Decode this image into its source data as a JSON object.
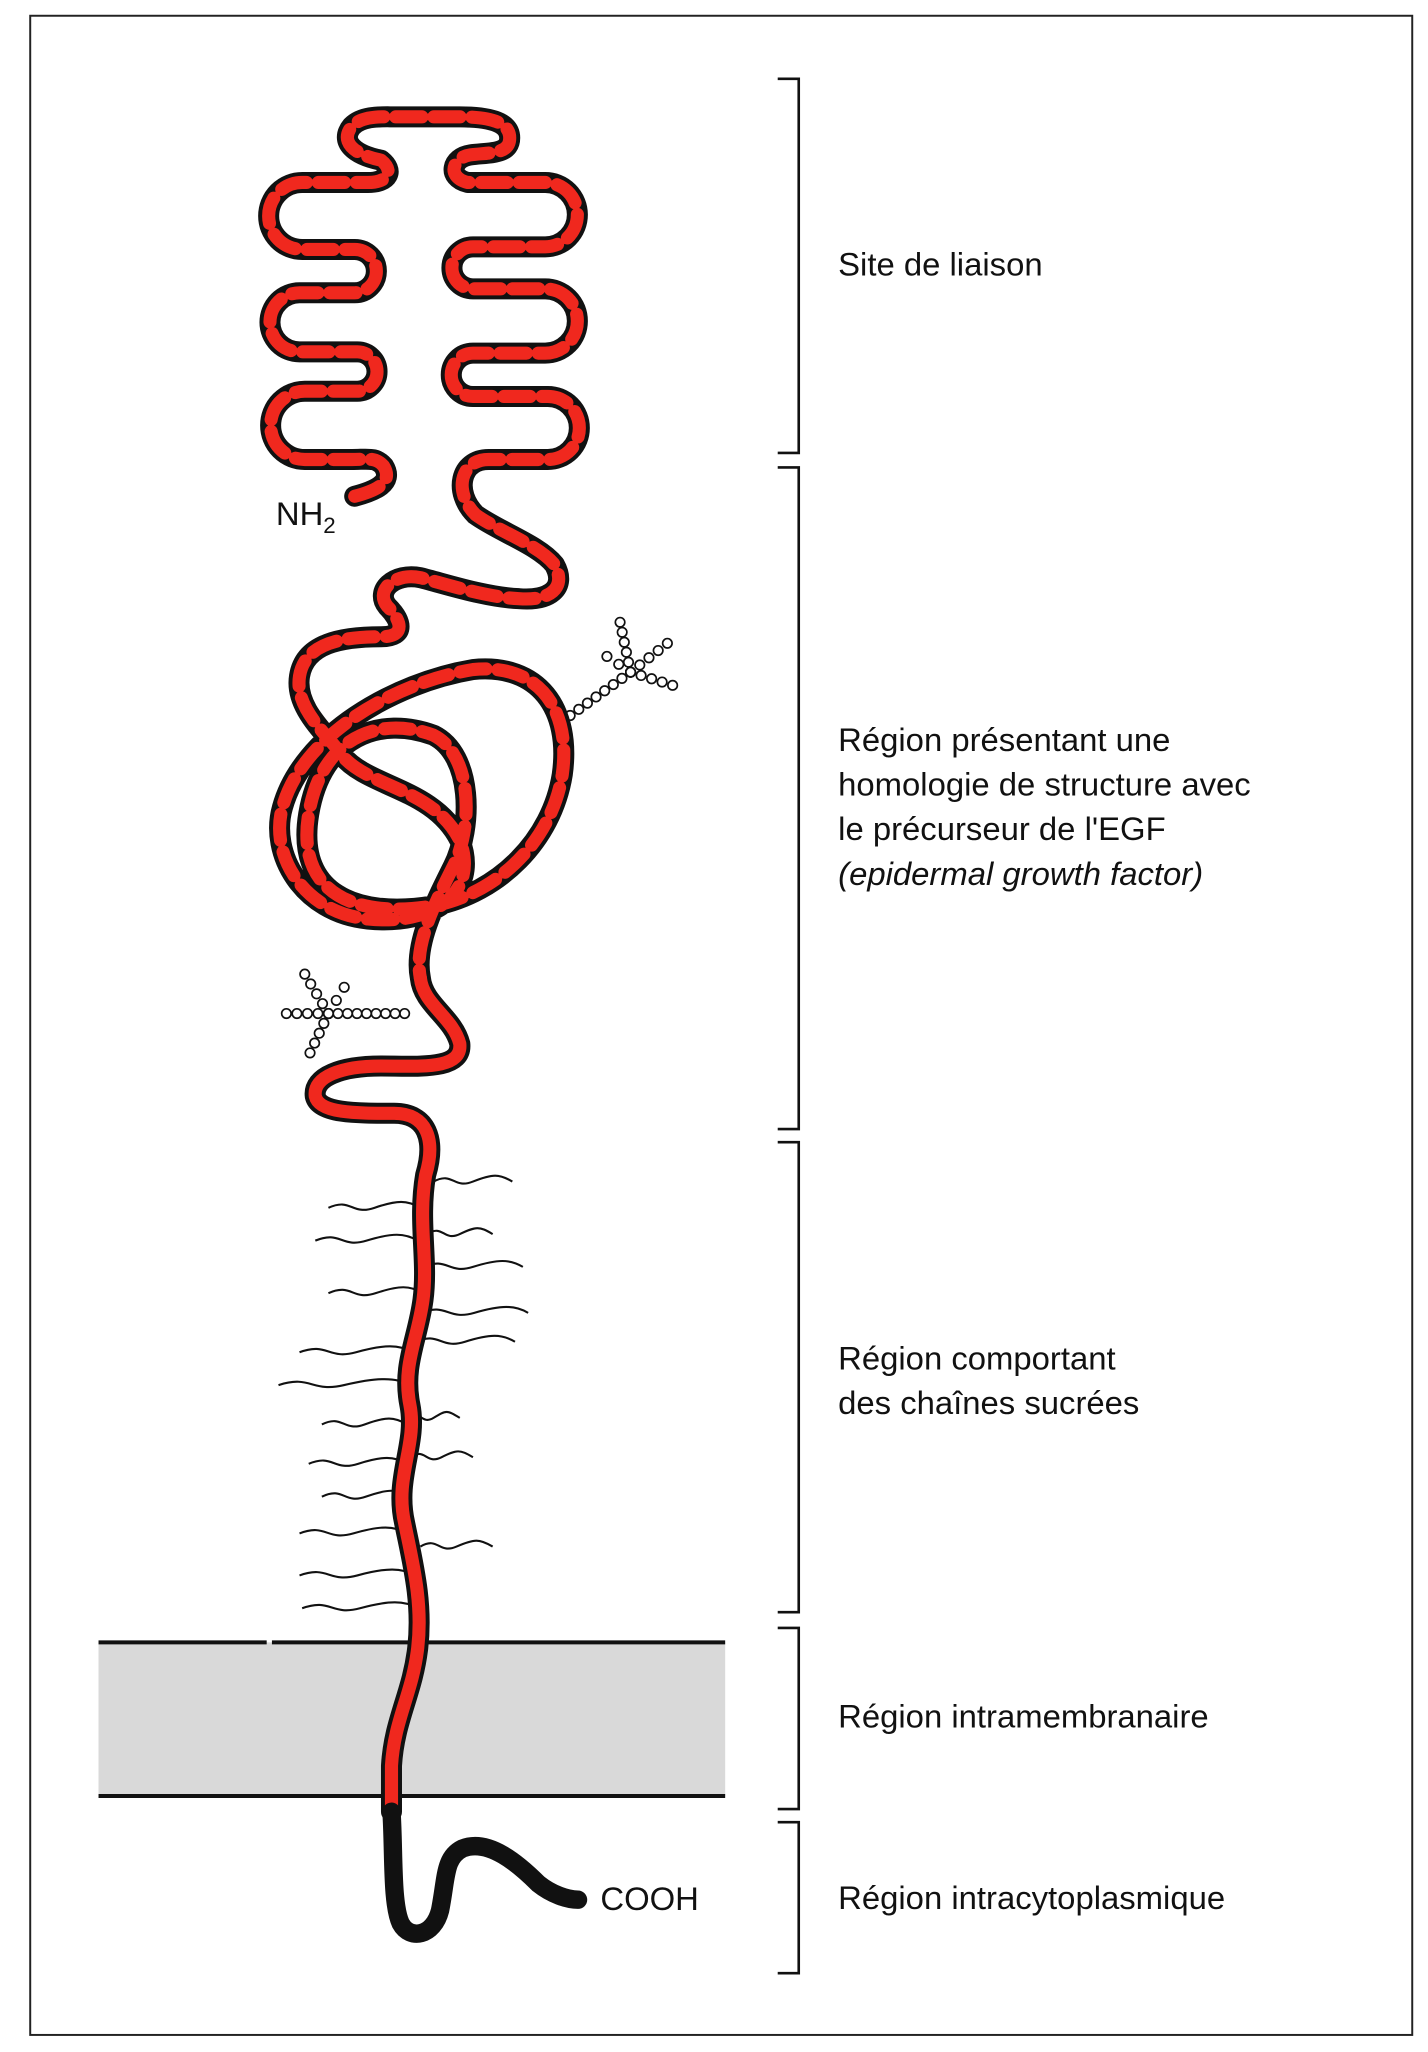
{
  "labels": {
    "nh2": "NH",
    "nh2_sub": "2",
    "cooh": "COOH"
  },
  "regions": [
    {
      "lines": [
        "Site de liaison"
      ]
    },
    {
      "lines": [
        "Région présentant une",
        "homologie de structure avec",
        "le précurseur de l'EGF",
        "(epidermal growth factor)"
      ]
    },
    {
      "lines": [
        "Région comportant",
        "des chaînes sucrées"
      ]
    },
    {
      "lines": [
        "Région intramembranaire"
      ]
    },
    {
      "lines": [
        "Région intracytoplasmique"
      ]
    }
  ],
  "colors": {
    "chain_red": "#f0281e",
    "chain_black": "#111111",
    "membrane": "#d9d9d9"
  }
}
